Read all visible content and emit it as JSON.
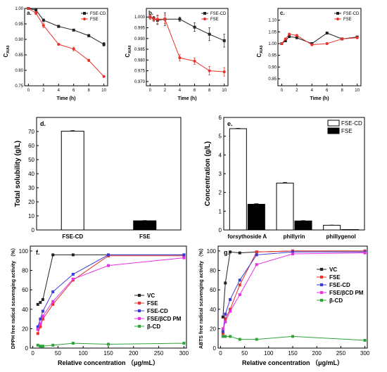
{
  "colors": {
    "FSE-CD": "#222222",
    "FSE": "#e8332a",
    "VC": "#222222",
    "FSE_red": "#e8332a",
    "FSE-CD_blue": "#3b3bd9",
    "PM": "#e632e6",
    "bCD": "#2fa33a"
  },
  "chart_data": [
    {
      "id": "a",
      "type": "line",
      "panel_label": "a.",
      "xlabel": "Time (h)",
      "ylabel": "C",
      "ylabel_sub": "A/A0",
      "xlim": [
        -0.5,
        10.5
      ],
      "ylim": [
        0.75,
        1.0
      ],
      "xticks": [
        0,
        2,
        4,
        6,
        8,
        10
      ],
      "yticks": [
        0.75,
        0.8,
        0.85,
        0.9,
        0.95,
        1.0
      ],
      "ytick_labels": [
        "0.75",
        "0.80",
        "0.85",
        "0.90",
        "0.95",
        "1.00"
      ],
      "legend": "top-right",
      "series": [
        {
          "name": "FSE-CD",
          "marker": "square",
          "x": [
            0,
            1,
            2,
            4,
            6,
            8,
            10
          ],
          "y": [
            1.0,
            0.995,
            0.962,
            0.942,
            0.93,
            0.912,
            0.884
          ],
          "err": [
            0.003,
            0.004,
            0.004,
            0.004,
            0.003,
            0.004,
            0.006
          ]
        },
        {
          "name": "FSE",
          "marker": "circle",
          "x": [
            0,
            1,
            2,
            4,
            6,
            8,
            10
          ],
          "y": [
            1.0,
            0.985,
            0.945,
            0.884,
            0.869,
            0.832,
            0.78
          ],
          "err": [
            0.003,
            0.005,
            0.008,
            0.003,
            0.006,
            0.004,
            0.003
          ]
        }
      ]
    },
    {
      "id": "b",
      "type": "line",
      "panel_label": "b.",
      "xlabel": "Time (h)",
      "ylabel": "C",
      "ylabel_sub": "A/A0",
      "xlim": [
        -0.5,
        10.5
      ],
      "ylim": [
        0.968,
        1.004
      ],
      "xticks": [
        0,
        2,
        4,
        6,
        8,
        10
      ],
      "yticks": [
        0.97,
        0.975,
        0.98,
        0.985,
        0.99,
        0.995,
        1.0
      ],
      "ytick_labels": [
        "0.970",
        "0.975",
        "0.980",
        "0.985",
        "0.990",
        "0.995",
        "1.000"
      ],
      "legend": "top-right",
      "series": [
        {
          "name": "FSE-CD",
          "marker": "square",
          "x": [
            0,
            0.5,
            1,
            2,
            4,
            6,
            8,
            10
          ],
          "y": [
            1.0,
            0.9993,
            0.9985,
            0.999,
            0.999,
            0.9953,
            0.992,
            0.989
          ],
          "err": [
            0.001,
            0.001,
            0.002,
            0.003,
            0.001,
            0.002,
            0.003,
            0.003
          ]
        },
        {
          "name": "FSE",
          "marker": "circle",
          "x": [
            0,
            0.5,
            1,
            2,
            4,
            6,
            8,
            10
          ],
          "y": [
            1.0,
            0.999,
            0.999,
            0.999,
            0.981,
            0.9795,
            0.975,
            0.9745
          ],
          "err": [
            0.001,
            0.001,
            0.002,
            0.002,
            0.0015,
            0.0015,
            0.002,
            0.002
          ]
        }
      ]
    },
    {
      "id": "c",
      "type": "line",
      "panel_label": "c.",
      "xlabel": "Time (h)",
      "ylabel": "C",
      "ylabel_sub": "A/A0",
      "xlim": [
        -0.5,
        10.5
      ],
      "ylim": [
        0.82,
        1.15
      ],
      "xticks": [
        0,
        2,
        4,
        6,
        8,
        10
      ],
      "yticks": [
        0.85,
        0.9,
        0.95,
        1.0,
        1.05,
        1.1
      ],
      "ytick_labels": [
        "0.85",
        "0.90",
        "0.95",
        "1.00",
        "1.05",
        "1.10"
      ],
      "legend": "top-right",
      "series": [
        {
          "name": "FSE-CD",
          "marker": "square",
          "x": [
            0,
            0.5,
            1,
            2,
            4,
            6,
            8,
            10
          ],
          "y": [
            1.0,
            1.012,
            1.03,
            1.025,
            1.0,
            1.045,
            1.02,
            1.028
          ],
          "err": [
            0.004,
            0.004,
            0.004,
            0.004,
            0.004,
            0.004,
            0.004,
            0.004
          ]
        },
        {
          "name": "FSE",
          "marker": "circle",
          "x": [
            0,
            0.5,
            1,
            2,
            4,
            6,
            8,
            10
          ],
          "y": [
            1.0,
            1.02,
            1.04,
            1.035,
            0.995,
            1.0,
            1.02,
            1.025
          ],
          "err": [
            0.004,
            0.004,
            0.004,
            0.004,
            0.004,
            0.004,
            0.004,
            0.004
          ]
        }
      ]
    },
    {
      "id": "d",
      "type": "bar",
      "panel_label": "d.",
      "ylabel": "Total solubility (g/L)",
      "ylim": [
        0,
        80
      ],
      "yticks": [
        0,
        10,
        20,
        30,
        40,
        50,
        60,
        70
      ],
      "categories": [
        "FSE-CD",
        "FSE"
      ],
      "values": [
        70.2,
        6.5
      ],
      "err": [
        0.4,
        0.2
      ],
      "fills": [
        "white",
        "black"
      ]
    },
    {
      "id": "e",
      "type": "bar",
      "panel_label": "e.",
      "ylabel": "Concentration (g/L)",
      "ylim": [
        0,
        6
      ],
      "yticks": [
        0,
        1,
        2,
        3,
        4,
        5,
        6
      ],
      "categories": [
        "forsythoside A",
        "phillyrin",
        "phillygenol"
      ],
      "legend": "top-right",
      "series": [
        {
          "name": "FSE-CD",
          "fill": "white",
          "values": [
            5.4,
            2.5,
            0.25
          ],
          "err": [
            0.02,
            0.04,
            0.01
          ]
        },
        {
          "name": "FSE",
          "fill": "black",
          "values": [
            1.37,
            0.48,
            0.02
          ],
          "err": [
            0.03,
            0.02,
            0.005
          ]
        }
      ]
    },
    {
      "id": "f",
      "type": "line",
      "panel_label": "f.",
      "xlabel": "Relative concentration （μg/mL）",
      "ylabel": "DPPH free radical scavenging activity （%）",
      "xlim": [
        -5,
        305
      ],
      "ylim": [
        0,
        105
      ],
      "xticks": [
        0,
        50,
        100,
        150,
        200,
        250,
        300
      ],
      "yticks": [
        0,
        20,
        40,
        60,
        80,
        100
      ],
      "legend": "center-right",
      "series": [
        {
          "name": "VC",
          "x": [
            10,
            15,
            20,
            40,
            80,
            150,
            300
          ],
          "y": [
            45,
            47,
            50,
            96,
            96,
            96,
            96
          ]
        },
        {
          "name": "FSE",
          "x": [
            10,
            15,
            20,
            40,
            80,
            150,
            300
          ],
          "y": [
            15,
            22,
            30,
            45,
            70,
            95,
            95
          ]
        },
        {
          "name": "FSE-CD",
          "x": [
            10,
            15,
            20,
            40,
            80,
            150,
            300
          ],
          "y": [
            22,
            30,
            38,
            58,
            76,
            96,
            96
          ]
        },
        {
          "name": "FSE/βCD PM",
          "x": [
            10,
            15,
            20,
            40,
            80,
            150,
            300
          ],
          "y": [
            19,
            25,
            33,
            48,
            71,
            85,
            93
          ]
        },
        {
          "name": "β-CD",
          "x": [
            10,
            15,
            20,
            40,
            80,
            150,
            300
          ],
          "y": [
            3,
            2,
            2,
            3,
            5,
            4,
            5
          ]
        }
      ]
    },
    {
      "id": "g",
      "type": "line",
      "panel_label": "g.",
      "xlabel": "Relative concentration （μg/mL）",
      "ylabel": "ABTS free radical scavenging activity （%）",
      "xlim": [
        -5,
        305
      ],
      "ylim": [
        0,
        105
      ],
      "xticks": [
        0,
        50,
        100,
        150,
        200,
        250,
        300
      ],
      "yticks": [
        0,
        20,
        40,
        60,
        80,
        100
      ],
      "legend": "top-right",
      "series": [
        {
          "name": "VC",
          "x": [
            5,
            10,
            20,
            40,
            75,
            150,
            300
          ],
          "y": [
            32,
            67,
            99,
            98,
            99,
            100,
            100
          ]
        },
        {
          "name": "FSE",
          "x": [
            5,
            10,
            20,
            40,
            75,
            150,
            300
          ],
          "y": [
            15,
            30,
            40,
            65,
            99,
            100,
            100
          ]
        },
        {
          "name": "FSE-CD",
          "x": [
            5,
            10,
            20,
            40,
            75,
            150,
            300
          ],
          "y": [
            17,
            35,
            50,
            70,
            96,
            99,
            99
          ]
        },
        {
          "name": "FSE/βCD PM",
          "x": [
            5,
            10,
            20,
            40,
            75,
            150,
            300
          ],
          "y": [
            20,
            27,
            38,
            55,
            86,
            97,
            98
          ]
        },
        {
          "name": "β-CD",
          "x": [
            5,
            10,
            20,
            40,
            75,
            150,
            300
          ],
          "y": [
            12,
            12,
            12,
            9,
            9,
            12,
            8
          ]
        }
      ]
    }
  ]
}
